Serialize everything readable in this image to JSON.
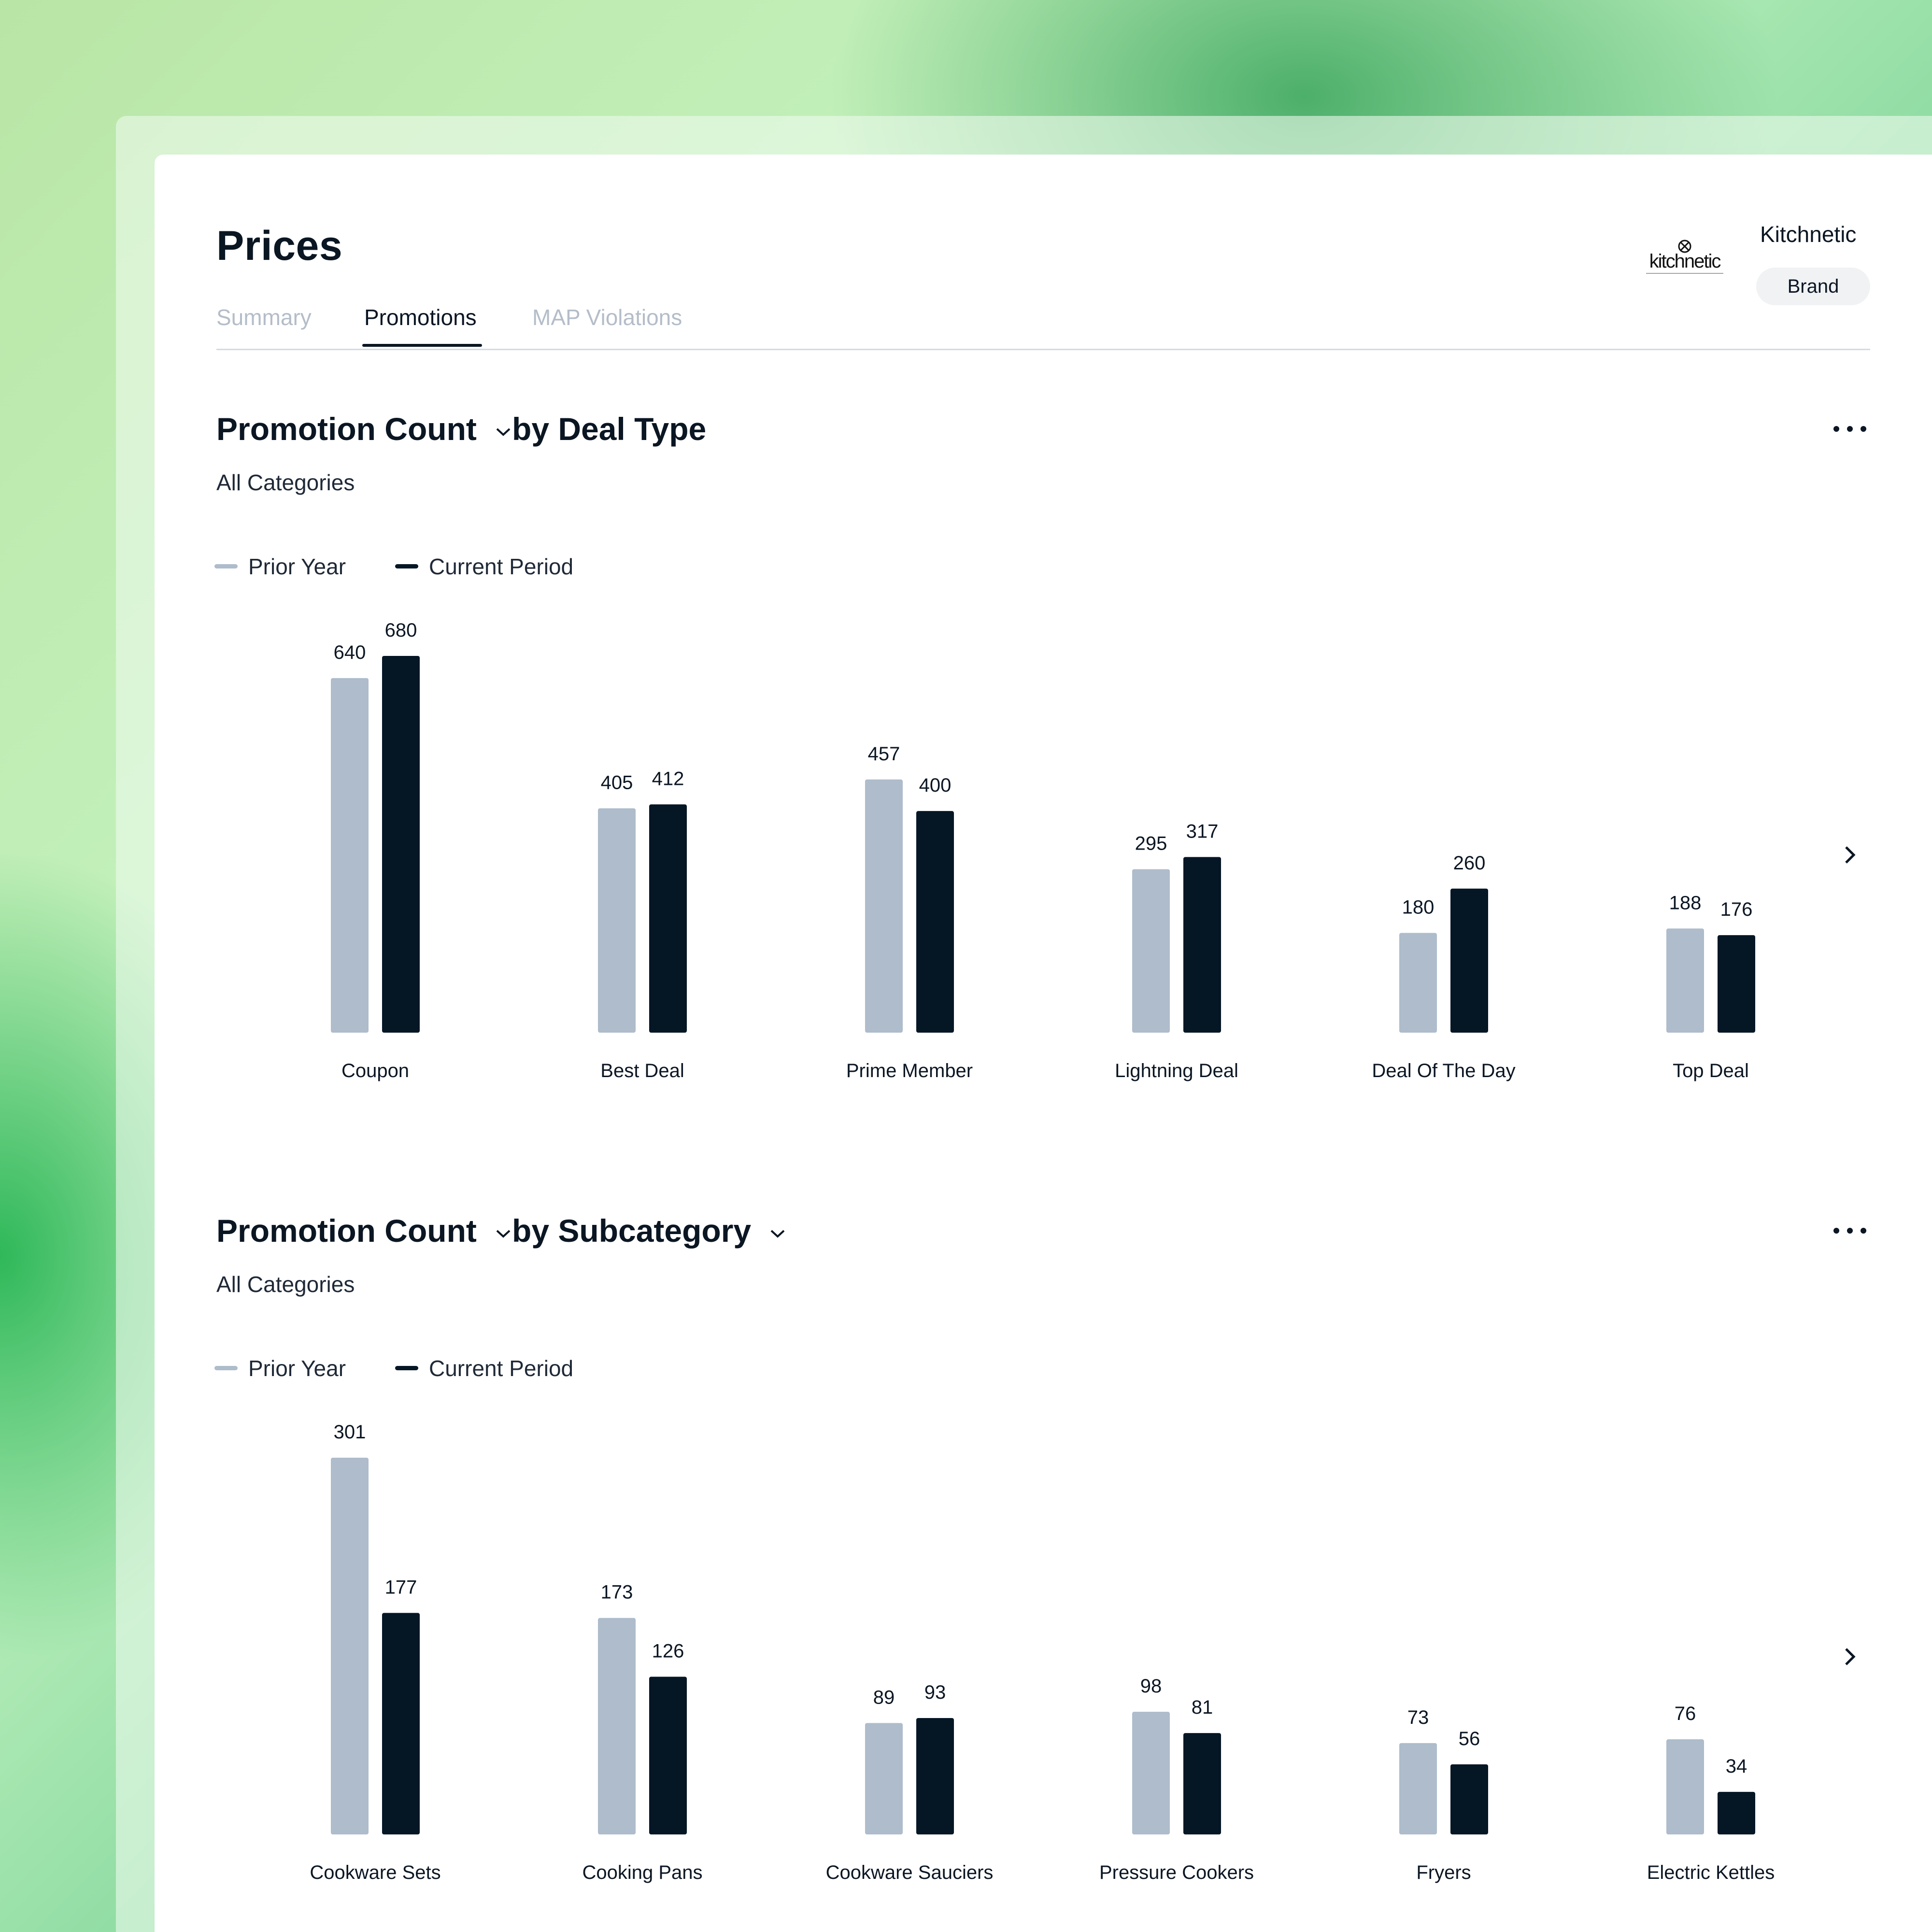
{
  "page": {
    "title": "Prices"
  },
  "tabs": [
    {
      "label": "Summary",
      "active": false
    },
    {
      "label": "Promotions",
      "active": true
    },
    {
      "label": "MAP Violations",
      "active": false
    }
  ],
  "brand": {
    "logo_text": "kitchnetic",
    "name": "Kitchnetic",
    "badge": "Brand"
  },
  "colors": {
    "prior": "#aebccb",
    "current": "#051625",
    "text": "#0b1623"
  },
  "icons": {
    "menu": "more-horizontal-icon",
    "next": "chevron-right-icon",
    "dropdown": "chevron-down-icon"
  },
  "sections": [
    {
      "metric": "Promotion Count",
      "dimension": "by Deal Type",
      "dimension_dropdown": false,
      "subtitle": "All Categories",
      "legend": {
        "prior": "Prior Year",
        "current": "Current Period"
      }
    },
    {
      "metric": "Promotion Count",
      "dimension": "by Subcategory",
      "dimension_dropdown": true,
      "subtitle": "All Categories",
      "legend": {
        "prior": "Prior Year",
        "current": "Current Period"
      }
    }
  ],
  "chart_data": [
    {
      "type": "bar",
      "title": "Promotion Count by Deal Type",
      "categories": [
        "Coupon",
        "Best Deal",
        "Prime Member",
        "Lightning Deal",
        "Deal Of The Day",
        "Top Deal"
      ],
      "series": [
        {
          "name": "Prior Year",
          "values": [
            640,
            405,
            457,
            295,
            180,
            188
          ]
        },
        {
          "name": "Current Period",
          "values": [
            680,
            412,
            400,
            317,
            260,
            176
          ]
        }
      ],
      "ylim": [
        0,
        680
      ],
      "grid": false,
      "legend": "top-left"
    },
    {
      "type": "bar",
      "title": "Promotion Count by Subcategory",
      "categories": [
        "Cookware Sets",
        "Cooking Pans",
        "Cookware Sauciers",
        "Pressure Cookers",
        "Fryers",
        "Electric Kettles"
      ],
      "series": [
        {
          "name": "Prior Year",
          "values": [
            301,
            173,
            89,
            98,
            73,
            76
          ]
        },
        {
          "name": "Current Period",
          "values": [
            177,
            126,
            93,
            81,
            56,
            34
          ]
        }
      ],
      "ylim": [
        0,
        301
      ],
      "grid": false,
      "legend": "top-left"
    }
  ]
}
